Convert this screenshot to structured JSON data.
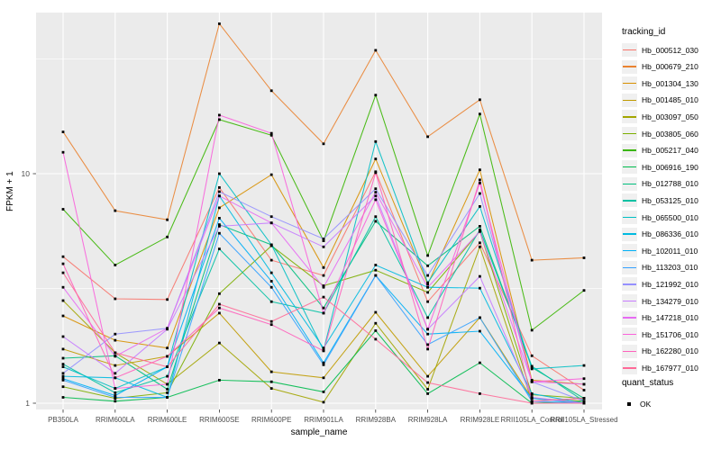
{
  "figure": {
    "y_axis_label": "FPKM + 1",
    "x_axis_label": "sample_name",
    "y_tick_labels": [
      "10",
      "1"
    ],
    "legend": {
      "tracking_title": "tracking_id",
      "quant_title": "quant_status",
      "quant_ok_label": "OK"
    }
  },
  "chart_data": {
    "type": "line",
    "title": "",
    "xlabel": "sample_name",
    "ylabel": "FPKM + 1",
    "y_scale": "log10",
    "ylim": [
      1,
      50
    ],
    "y_major_ticks": [
      10,
      1
    ],
    "y_minor_ticks": [
      31.6,
      3.16
    ],
    "grid": "on",
    "panel_color": "#EBEBEB",
    "gridline_color": "#FFFFFF",
    "point_shape": "filled-black-square",
    "legend_position": "right",
    "quant_status_value": "OK",
    "categories": [
      "PB350LA",
      "RRIM600LA",
      "RRIM600LE",
      "RRIM600SE",
      "RRIM600PE",
      "RRIM901LA",
      "RRIM928BA",
      "RRIM928LA",
      "RRIM928LE",
      "RRII105LA_Control",
      "RRII105LA_Stressed"
    ],
    "series": [
      {
        "name": "Hb_000512_030",
        "color": "#F8766D",
        "values": [
          4.35,
          2.85,
          2.83,
          8.7,
          4.2,
          3.6,
          10.2,
          2.77,
          5.0,
          1.61,
          1.14
        ]
      },
      {
        "name": "Hb_000679_210",
        "color": "#EA8331",
        "values": [
          15.2,
          6.9,
          6.3,
          45.0,
          23.0,
          13.5,
          34.5,
          14.5,
          21.0,
          4.2,
          4.3
        ]
      },
      {
        "name": "Hb_001304_130",
        "color": "#D89000",
        "values": [
          2.4,
          1.88,
          1.74,
          7.1,
          9.9,
          3.9,
          11.6,
          3.3,
          10.4,
          1.26,
          1.21
        ]
      },
      {
        "name": "Hb_001485_010",
        "color": "#C09B00",
        "values": [
          1.72,
          1.46,
          1.6,
          2.47,
          1.37,
          1.29,
          2.49,
          1.31,
          2.36,
          1.05,
          1.02
        ]
      },
      {
        "name": "Hb_003097_050",
        "color": "#A3A500",
        "values": [
          2.8,
          1.66,
          1.21,
          1.83,
          1.16,
          1.01,
          2.23,
          1.15,
          4.8,
          1.02,
          1.05
        ]
      },
      {
        "name": "Hb_003805_060",
        "color": "#7CAE00",
        "values": [
          1.18,
          1.05,
          1.11,
          3.0,
          4.85,
          3.25,
          3.8,
          3.04,
          5.6,
          1.09,
          1.05
        ]
      },
      {
        "name": "Hb_005217_040",
        "color": "#39B600",
        "values": [
          7.0,
          4.0,
          5.3,
          17.2,
          14.7,
          5.1,
          22.0,
          4.4,
          18.2,
          2.08,
          3.1
        ]
      },
      {
        "name": "Hb_006916_190",
        "color": "#00BB4E",
        "values": [
          1.06,
          1.02,
          1.06,
          1.26,
          1.24,
          1.12,
          2.07,
          1.1,
          1.5,
          1.0,
          1.02
        ]
      },
      {
        "name": "Hb_012788_010",
        "color": "#00BF7D",
        "values": [
          1.57,
          1.61,
          1.15,
          6.0,
          4.9,
          2.6,
          6.2,
          3.97,
          5.9,
          1.43,
          1.05
        ]
      },
      {
        "name": "Hb_053125_010",
        "color": "#00C1A3",
        "values": [
          1.48,
          1.11,
          1.31,
          4.7,
          2.77,
          2.47,
          6.5,
          2.36,
          5.7,
          1.45,
          1.02
        ]
      },
      {
        "name": "Hb_065500_010",
        "color": "#00BFC4",
        "values": [
          1.44,
          1.16,
          1.44,
          10.0,
          4.9,
          1.7,
          13.8,
          3.35,
          7.2,
          1.41,
          1.46
        ]
      },
      {
        "name": "Hb_086336_010",
        "color": "#00BAE0",
        "values": [
          1.31,
          1.29,
          1.06,
          8.0,
          3.7,
          1.74,
          4.0,
          3.2,
          3.17,
          1.1,
          1.0
        ]
      },
      {
        "name": "Hb_102011_010",
        "color": "#00B0F6",
        "values": [
          1.28,
          1.08,
          1.44,
          6.4,
          3.4,
          1.5,
          3.6,
          2.0,
          2.06,
          1.05,
          1.0
        ]
      },
      {
        "name": "Hb_113203_010",
        "color": "#35A2FF",
        "values": [
          1.26,
          1.06,
          1.06,
          5.5,
          3.2,
          1.47,
          3.6,
          1.8,
          2.36,
          1.02,
          1.0
        ]
      },
      {
        "name": "Hb_121992_010",
        "color": "#9590FF",
        "values": [
          1.35,
          2.0,
          2.12,
          8.35,
          6.5,
          5.2,
          8.6,
          3.6,
          8.2,
          1.24,
          1.02
        ]
      },
      {
        "name": "Hb_134279_010",
        "color": "#C77CFF",
        "values": [
          1.95,
          1.35,
          2.1,
          5.9,
          6.1,
          4.8,
          8.0,
          2.1,
          3.57,
          1.06,
          1.0
        ]
      },
      {
        "name": "Hb_147218_010",
        "color": "#E76BF3",
        "values": [
          3.2,
          1.6,
          2.12,
          8.0,
          6.1,
          3.2,
          8.3,
          3.2,
          5.6,
          1.24,
          1.21
        ]
      },
      {
        "name": "Hb_151706_010",
        "color": "#FA62DB",
        "values": [
          12.4,
          1.16,
          1.21,
          18.0,
          15.0,
          2.47,
          7.7,
          2.1,
          9.1,
          1.24,
          1.28
        ]
      },
      {
        "name": "Hb_162280_010",
        "color": "#FF62BC",
        "values": [
          4.05,
          1.29,
          1.6,
          2.6,
          2.2,
          1.69,
          10.1,
          1.72,
          9.4,
          1.02,
          1.05
        ]
      },
      {
        "name": "Hb_167977_010",
        "color": "#FF6A98",
        "values": [
          3.7,
          1.66,
          1.44,
          2.7,
          2.27,
          2.9,
          1.9,
          1.23,
          1.1,
          1.0,
          1.0
        ]
      }
    ]
  }
}
